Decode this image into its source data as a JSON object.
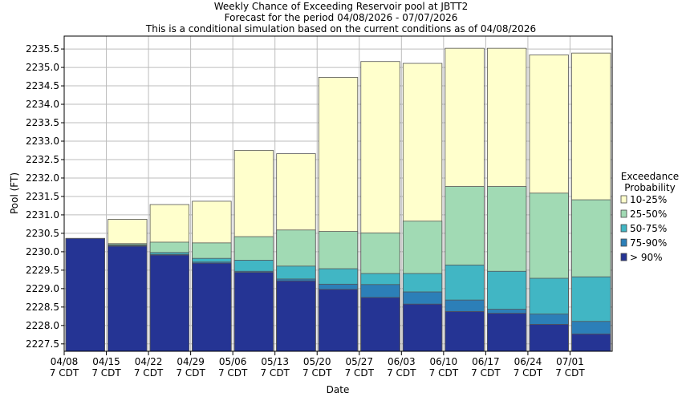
{
  "chart_data": {
    "type": "bar",
    "title": "Weekly Chance of Exceeding Reservoir pool at JBTT2",
    "subtitle1": "Forecast for the period 04/08/2026 - 07/07/2026",
    "subtitle2": "This is a conditional simulation based on the current conditions as of 04/08/2026",
    "xlabel": "Date",
    "ylabel": "Pool (FT)",
    "ylim": [
      2227.3,
      2235.85
    ],
    "yticks": [
      2227.5,
      2228.0,
      2228.5,
      2229.0,
      2229.5,
      2230.0,
      2230.5,
      2231.0,
      2231.5,
      2232.0,
      2232.5,
      2233.0,
      2233.5,
      2234.0,
      2234.5,
      2235.0,
      2235.5
    ],
    "yticks_labels": [
      "2227.5",
      "2228.0",
      "2228.5",
      "2229.0",
      "2229.5",
      "2230.0",
      "2230.5",
      "2231.0",
      "2231.5",
      "2232.0",
      "2232.5",
      "2233.0",
      "2233.5",
      "2234.0",
      "2234.5",
      "2235.0",
      "2235.5"
    ],
    "xticks": [
      {
        "date": "04/08",
        "tz": "7 CDT"
      },
      {
        "date": "04/15",
        "tz": "7 CDT"
      },
      {
        "date": "04/22",
        "tz": "7 CDT"
      },
      {
        "date": "04/29",
        "tz": "7 CDT"
      },
      {
        "date": "05/06",
        "tz": "7 CDT"
      },
      {
        "date": "05/13",
        "tz": "7 CDT"
      },
      {
        "date": "05/20",
        "tz": "7 CDT"
      },
      {
        "date": "05/27",
        "tz": "7 CDT"
      },
      {
        "date": "06/03",
        "tz": "7 CDT"
      },
      {
        "date": "06/10",
        "tz": "7 CDT"
      },
      {
        "date": "06/17",
        "tz": "7 CDT"
      },
      {
        "date": "06/24",
        "tz": "7 CDT"
      },
      {
        "date": "07/01",
        "tz": "7 CDT"
      }
    ],
    "legend": {
      "title1": "Exceedance",
      "title2": "Probability",
      "position": "right"
    },
    "grid": true,
    "series": [
      {
        "name": "10-25%",
        "color": "#ffffcc",
        "values": [
          2230.36,
          2230.88,
          2231.28,
          2231.37,
          2232.75,
          2232.66,
          2234.73,
          2235.16,
          2235.11,
          2235.52,
          2235.52,
          2235.34,
          2235.39
        ]
      },
      {
        "name": "25-50%",
        "color": "#a1dab4",
        "values": [
          2230.36,
          2230.22,
          2230.26,
          2230.24,
          2230.41,
          2230.59,
          2230.55,
          2230.51,
          2230.83,
          2231.77,
          2231.77,
          2231.59,
          2231.41
        ]
      },
      {
        "name": "50-75%",
        "color": "#41b6c4",
        "values": [
          2230.36,
          2230.19,
          2229.98,
          2229.82,
          2229.77,
          2229.61,
          2229.54,
          2229.41,
          2229.41,
          2229.64,
          2229.47,
          2229.28,
          2229.32
        ]
      },
      {
        "name": "75-90%",
        "color": "#2c7fb8",
        "values": [
          2230.36,
          2230.17,
          2229.93,
          2229.72,
          2229.47,
          2229.26,
          2229.12,
          2229.11,
          2228.91,
          2228.69,
          2228.44,
          2228.31,
          2228.11
        ]
      },
      {
        "name": "> 90%",
        "color": "#253494",
        "values": [
          2230.36,
          2230.15,
          2229.91,
          2229.69,
          2229.44,
          2229.21,
          2228.98,
          2228.76,
          2228.58,
          2228.38,
          2228.33,
          2228.03,
          2227.77
        ]
      }
    ]
  }
}
